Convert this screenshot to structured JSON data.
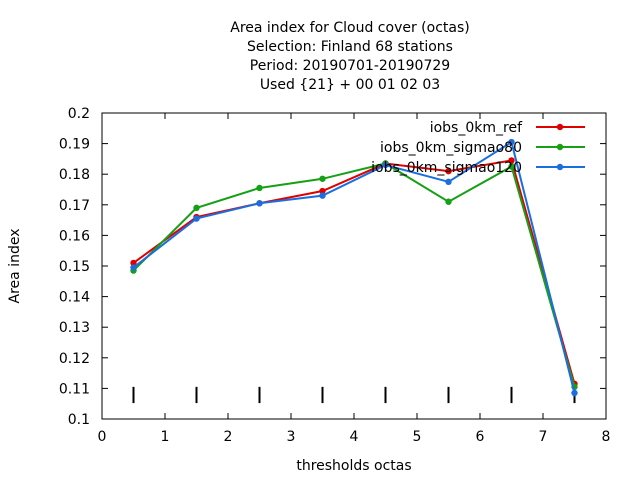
{
  "chart_data": {
    "type": "line",
    "title_lines": [
      "Area index  for Cloud cover (octas)",
      "Selection: Finland     68 stations",
      "Period: 20190701-20190729",
      "Used {21} + 00 01 02 03"
    ],
    "xlabel": "thresholds octas",
    "ylabel": "Area index",
    "xlim": [
      0,
      8
    ],
    "ylim": [
      0.1,
      0.2
    ],
    "x_ticks": [
      0,
      1,
      2,
      3,
      4,
      5,
      6,
      7,
      8
    ],
    "y_ticks": [
      0.1,
      0.11,
      0.12,
      0.13,
      0.14,
      0.15,
      0.16,
      0.17,
      0.18,
      0.19,
      0.2
    ],
    "x_tick_labels": [
      "0",
      "1",
      "2",
      "3",
      "4",
      "5",
      "6",
      "7",
      "8"
    ],
    "y_tick_labels": [
      "0.1",
      "0.11",
      "0.12",
      "0.13",
      "0.14",
      "0.15",
      "0.16",
      "0.17",
      "0.18",
      "0.19",
      "0.2"
    ],
    "threshold_marks": [
      0.5,
      1.5,
      2.5,
      3.5,
      4.5,
      5.5,
      6.5,
      7.5
    ],
    "x": [
      0.5,
      1.5,
      2.5,
      3.5,
      4.5,
      5.5,
      6.5,
      7.5
    ],
    "series": [
      {
        "name": "iobs_0km_ref",
        "color": "#e00000",
        "values": [
          0.151,
          0.166,
          0.1705,
          0.1745,
          0.1835,
          0.181,
          0.1845,
          0.1115
        ]
      },
      {
        "name": "iobs_0km_sigmao80",
        "color": "#16a016",
        "values": [
          0.1485,
          0.169,
          0.1755,
          0.1785,
          0.1835,
          0.171,
          0.1825,
          0.1105
        ]
      },
      {
        "name": "iobs_0km_sigmao120",
        "color": "#1a6ee0",
        "values": [
          0.1495,
          0.1655,
          0.1705,
          0.173,
          0.183,
          0.1775,
          0.1905,
          0.1085
        ]
      }
    ],
    "legend_position": "top-right",
    "grid": false
  }
}
